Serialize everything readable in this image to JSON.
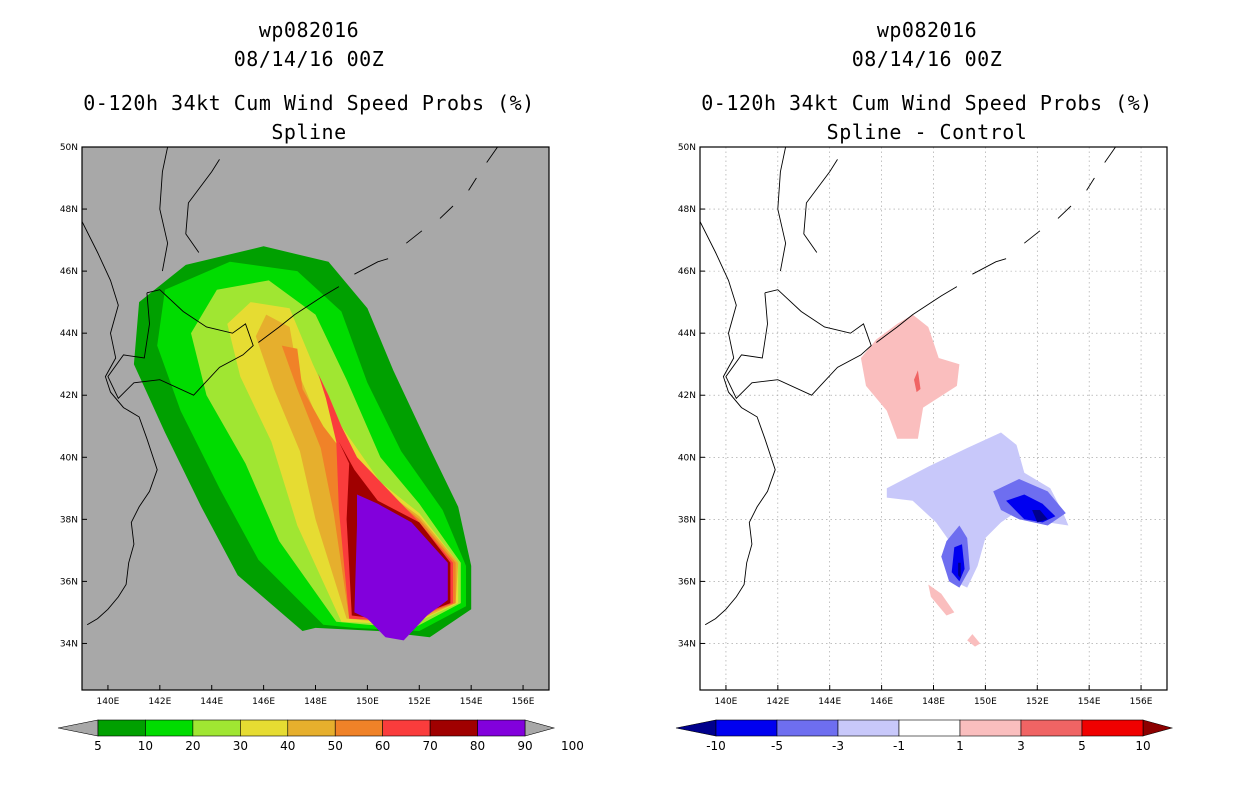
{
  "panels": [
    {
      "storm_id": "wp082016",
      "datetime": "08/14/16 00Z",
      "product": "0-120h 34kt Cum Wind Speed Probs (%)",
      "subtitle": "Spline"
    },
    {
      "storm_id": "wp082016",
      "datetime": "08/14/16 00Z",
      "product": "0-120h 34kt Cum Wind Speed Probs (%)",
      "subtitle": "Spline - Control"
    }
  ],
  "chart_data": [
    {
      "type": "contour-map",
      "title": "0-120h 34kt Cum Wind Speed Probs (%)",
      "subtitle": "Spline",
      "x_axis": {
        "labels": [
          "140E",
          "142E",
          "144E",
          "146E",
          "148E",
          "150E",
          "152E",
          "154E",
          "156E"
        ],
        "range_deg": [
          139,
          157
        ]
      },
      "y_axis": {
        "labels": [
          "34N",
          "36N",
          "38N",
          "40N",
          "42N",
          "44N",
          "46N",
          "48N",
          "50N"
        ],
        "range_deg": [
          32.5,
          50
        ]
      },
      "background": "#a8a8a8",
      "grid": false,
      "contour_levels": [
        5,
        10,
        20,
        30,
        40,
        50,
        60,
        70,
        80,
        90,
        100
      ],
      "colorbar_labels": [
        "5",
        "10",
        "20",
        "30",
        "40",
        "50",
        "60",
        "70",
        "80",
        "90",
        "100"
      ],
      "colors": [
        "#00a000",
        "#00dc00",
        "#a0e632",
        "#e6dc32",
        "#e6af2d",
        "#f08228",
        "#fa3c3c",
        "#a00000",
        "#8200dc"
      ],
      "arrow_colors": {
        "below": "#a8a8a8",
        "above": "#a8a8a8"
      },
      "max_value_region": "100% over ~149-154E, 34-39N"
    },
    {
      "type": "contour-map",
      "title": "0-120h 34kt Cum Wind Speed Probs (%)",
      "subtitle": "Spline - Control",
      "x_axis": {
        "labels": [
          "140E",
          "142E",
          "144E",
          "146E",
          "148E",
          "150E",
          "152E",
          "154E",
          "156E"
        ],
        "range_deg": [
          139,
          157
        ]
      },
      "y_axis": {
        "labels": [
          "34N",
          "36N",
          "38N",
          "40N",
          "42N",
          "44N",
          "46N",
          "48N",
          "50N"
        ],
        "range_deg": [
          32.5,
          50
        ]
      },
      "background": "#ffffff",
      "grid": true,
      "contour_levels": [
        -10,
        -5,
        -3,
        -1,
        1,
        3,
        5,
        10
      ],
      "colorbar_labels": [
        "-10",
        "-5",
        "-3",
        "-1",
        "1",
        "3",
        "5",
        "10"
      ],
      "colors": [
        "#0000f0",
        "#6e6ef0",
        "#c8c8fa",
        "#ffffff",
        "#fabebe",
        "#f06464",
        "#f00000"
      ],
      "arrow_colors": {
        "below": "#00008c",
        "above": "#8c0000"
      },
      "max_value_region": "min below -10 near 152E 38N and 149E 36N"
    }
  ]
}
